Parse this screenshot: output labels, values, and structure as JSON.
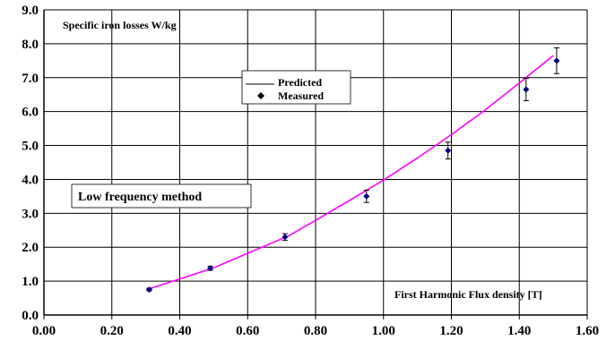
{
  "chart_data": {
    "type": "scatter",
    "title": "",
    "xlabel": "First Harmonic Flux density [T]",
    "ylabel": "Specific iron losses W/kg",
    "annotation": "Low frequency method",
    "xlim": [
      0,
      1.6
    ],
    "ylim": [
      0,
      9
    ],
    "x_ticks": [
      "0.00",
      "0.20",
      "0.40",
      "0.60",
      "0.80",
      "1.00",
      "1.20",
      "1.40",
      "1.60"
    ],
    "y_ticks": [
      "0.0",
      "1.0",
      "2.0",
      "3.0",
      "4.0",
      "5.0",
      "6.0",
      "7.0",
      "8.0",
      "9.0"
    ],
    "grid": true,
    "legend_placement": "upper-center",
    "series": [
      {
        "name": "Predicted",
        "kind": "line",
        "color": "#ff00ff",
        "x": [
          0.31,
          0.4,
          0.5,
          0.6,
          0.72,
          0.8,
          0.9,
          1.0,
          1.1,
          1.2,
          1.3,
          1.4,
          1.5
        ],
        "y": [
          0.77,
          1.06,
          1.39,
          1.82,
          2.33,
          2.79,
          3.38,
          3.98,
          4.63,
          5.32,
          6.05,
          6.84,
          7.65
        ]
      },
      {
        "name": "Measured",
        "kind": "points",
        "color": "#000080",
        "x": [
          0.31,
          0.49,
          0.71,
          0.95,
          1.19,
          1.42,
          1.51
        ],
        "y": [
          0.75,
          1.38,
          2.3,
          3.5,
          4.85,
          6.65,
          7.5
        ],
        "err": [
          0.04,
          0.06,
          0.1,
          0.18,
          0.25,
          0.33,
          0.38
        ]
      }
    ]
  }
}
